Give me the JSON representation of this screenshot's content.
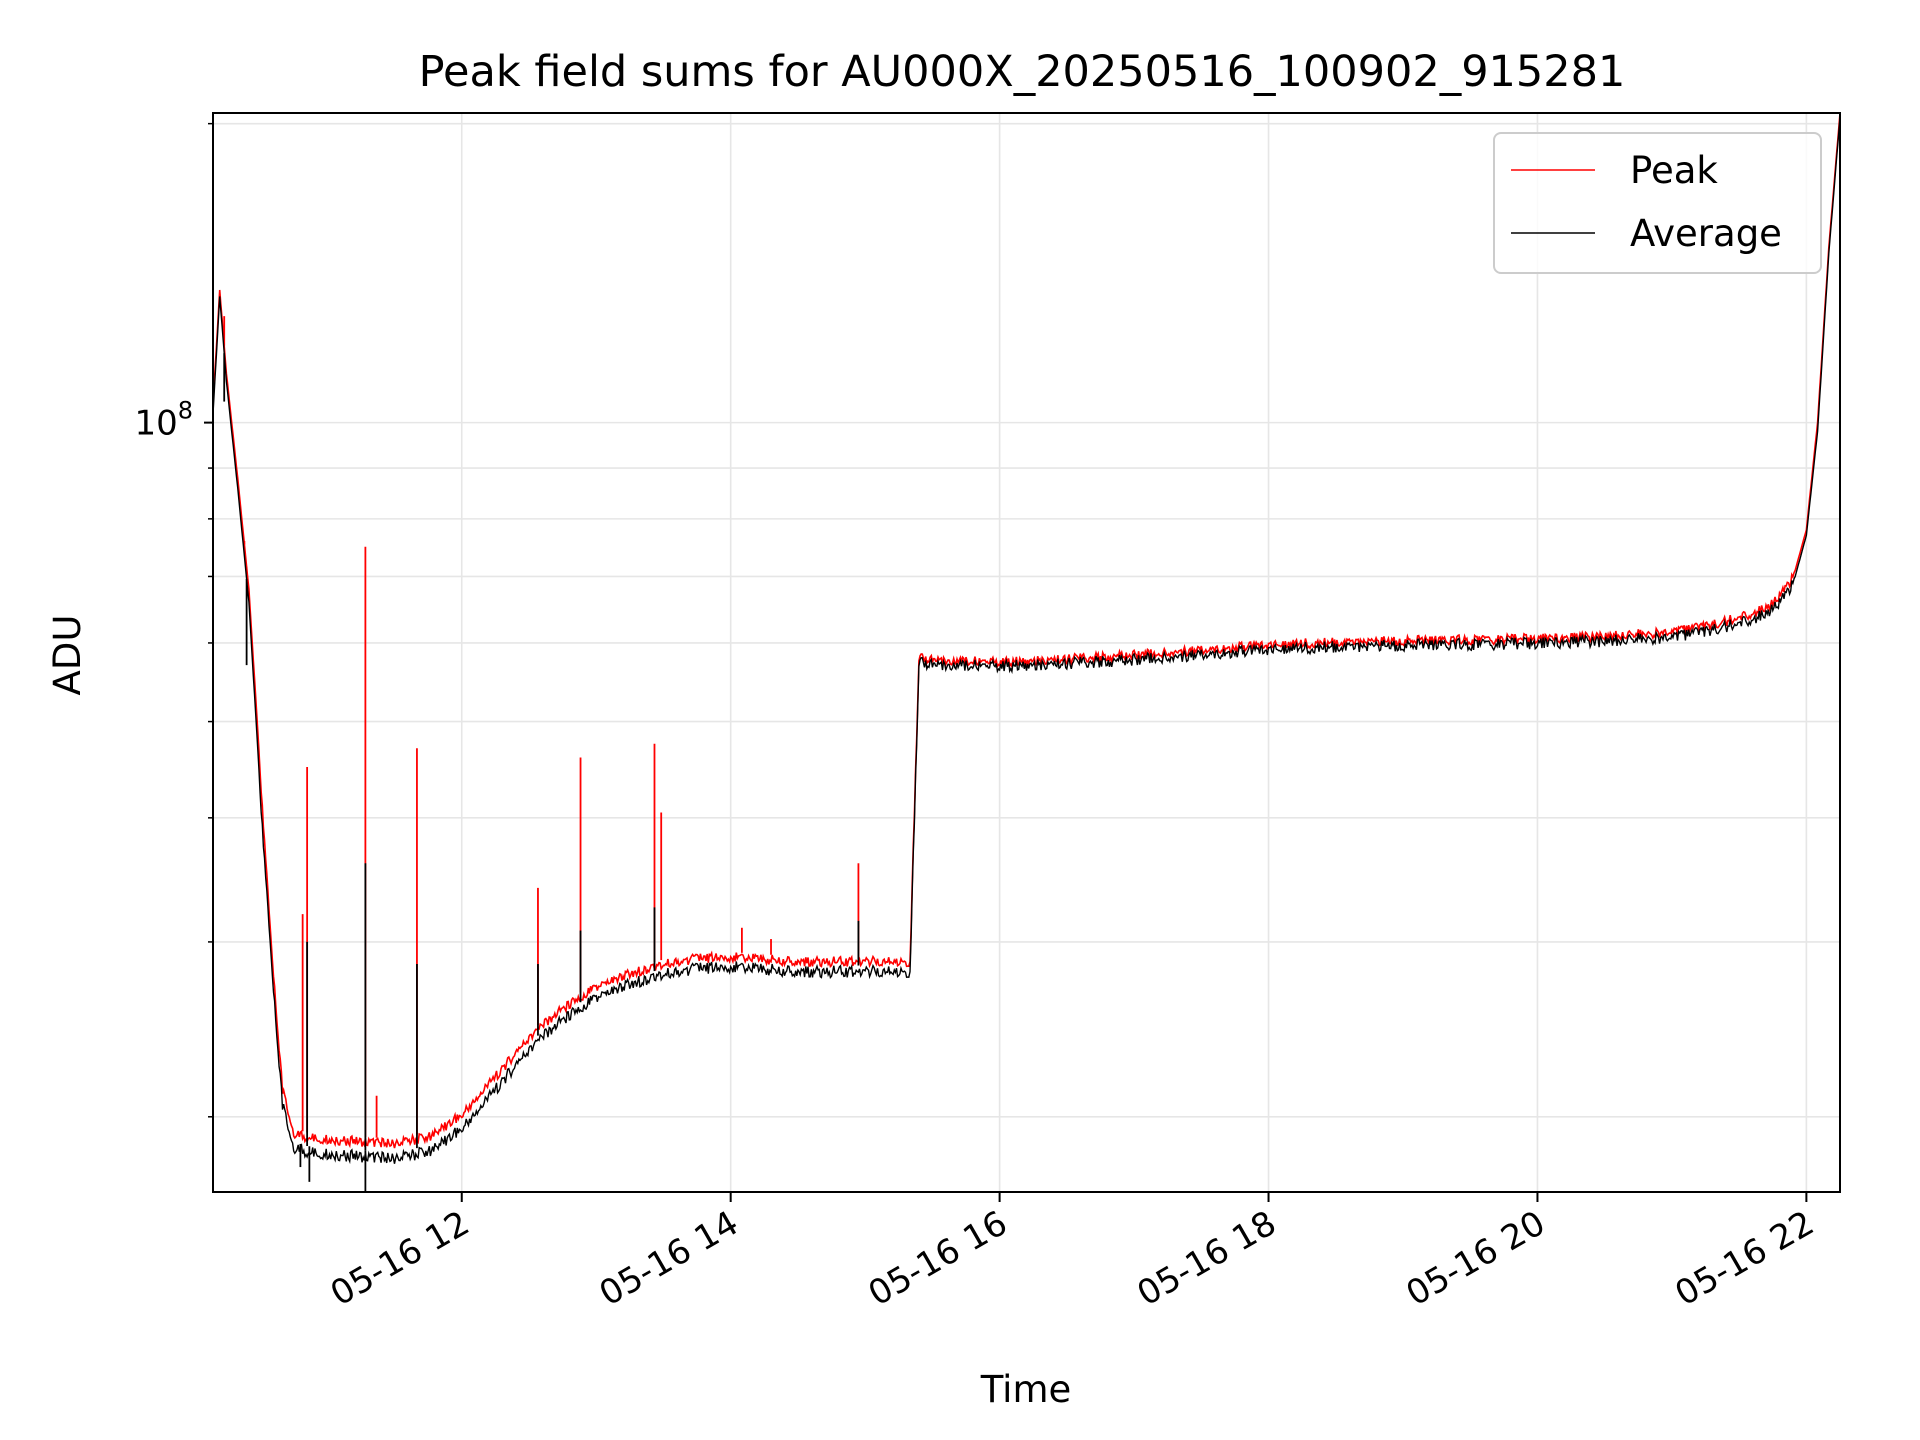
{
  "chart_data": {
    "type": "line",
    "title": "Peak field sums for AU000X_20250516_100902_915281",
    "xlabel": "Time",
    "ylabel": "ADU",
    "x_ticks": [
      "05-16 12",
      "05-16 14",
      "05-16 16",
      "05-16 18",
      "05-16 20",
      "05-16 22"
    ],
    "y_ticks": [
      {
        "value": 100000000,
        "base": "10",
        "exponent": "8"
      }
    ],
    "y_scale": "log",
    "xlim": [
      "2025-05-16 10:09",
      "2025-05-16 22:15"
    ],
    "ylim": [
      16800000,
      205000000
    ],
    "grid": true,
    "legend": {
      "position": "top-right",
      "entries": [
        "Peak",
        "Average"
      ]
    },
    "colors": {
      "Peak": "#ff0000",
      "Average": "#000000",
      "grid": "#e6e6e6"
    },
    "series": [
      {
        "name": "Peak",
        "x": [
          "2025-05-16 10:09",
          "2025-05-16 10:12",
          "2025-05-16 10:15",
          "2025-05-16 10:20",
          "2025-05-16 10:25",
          "2025-05-16 10:30",
          "2025-05-16 10:35",
          "2025-05-16 10:40",
          "2025-05-16 10:45",
          "2025-05-16 10:50",
          "2025-05-16 11:00",
          "2025-05-16 11:15",
          "2025-05-16 11:30",
          "2025-05-16 11:45",
          "2025-05-16 12:00",
          "2025-05-16 12:15",
          "2025-05-16 12:30",
          "2025-05-16 12:45",
          "2025-05-16 13:00",
          "2025-05-16 13:15",
          "2025-05-16 13:30",
          "2025-05-16 13:45",
          "2025-05-16 14:00",
          "2025-05-16 14:30",
          "2025-05-16 15:00",
          "2025-05-16 15:20",
          "2025-05-16 15:24",
          "2025-05-16 16:00",
          "2025-05-16 17:00",
          "2025-05-16 18:00",
          "2025-05-16 19:00",
          "2025-05-16 20:00",
          "2025-05-16 20:30",
          "2025-05-16 21:00",
          "2025-05-16 21:20",
          "2025-05-16 21:35",
          "2025-05-16 21:45",
          "2025-05-16 21:55",
          "2025-05-16 22:00",
          "2025-05-16 22:05",
          "2025-05-16 22:10",
          "2025-05-16 22:15"
        ],
        "values": [
          104000000,
          136000000,
          112000000,
          88000000,
          68000000,
          45000000,
          30000000,
          21500000,
          19500000,
          19300000,
          19200000,
          19100000,
          19000000,
          19300000,
          20300000,
          22200000,
          24300000,
          26000000,
          27300000,
          28200000,
          28800000,
          29200000,
          29300000,
          29000000,
          29000000,
          29000000,
          58500000,
          58000000,
          59000000,
          60500000,
          61000000,
          61300000,
          61600000,
          62300000,
          63500000,
          64800000,
          66500000,
          71000000,
          78000000,
          100000000,
          150000000,
          205000000
        ],
        "spikes": [
          {
            "x": "2025-05-16 10:14",
            "value": 128000000
          },
          {
            "x": "2025-05-16 10:23",
            "value": 76000000
          },
          {
            "x": "2025-05-16 10:24",
            "value": 71000000
          },
          {
            "x": "2025-05-16 10:49",
            "value": 32000000
          },
          {
            "x": "2025-05-16 10:51",
            "value": 45000000
          },
          {
            "x": "2025-05-16 11:17",
            "value": 75000000
          },
          {
            "x": "2025-05-16 11:22",
            "value": 21000000
          },
          {
            "x": "2025-05-16 11:40",
            "value": 47000000
          },
          {
            "x": "2025-05-16 12:34",
            "value": 34000000
          },
          {
            "x": "2025-05-16 12:53",
            "value": 46000000
          },
          {
            "x": "2025-05-16 13:26",
            "value": 47500000
          },
          {
            "x": "2025-05-16 13:29",
            "value": 40500000
          },
          {
            "x": "2025-05-16 14:05",
            "value": 31000000
          },
          {
            "x": "2025-05-16 14:18",
            "value": 30200000
          },
          {
            "x": "2025-05-16 14:57",
            "value": 36000000
          }
        ]
      },
      {
        "name": "Average",
        "x": [
          "2025-05-16 10:09",
          "2025-05-16 10:12",
          "2025-05-16 10:15",
          "2025-05-16 10:20",
          "2025-05-16 10:25",
          "2025-05-16 10:30",
          "2025-05-16 10:35",
          "2025-05-16 10:40",
          "2025-05-16 10:45",
          "2025-05-16 10:50",
          "2025-05-16 11:00",
          "2025-05-16 11:15",
          "2025-05-16 11:30",
          "2025-05-16 11:45",
          "2025-05-16 12:00",
          "2025-05-16 12:15",
          "2025-05-16 12:30",
          "2025-05-16 12:45",
          "2025-05-16 13:00",
          "2025-05-16 13:15",
          "2025-05-16 13:30",
          "2025-05-16 13:45",
          "2025-05-16 14:00",
          "2025-05-16 14:30",
          "2025-05-16 15:00",
          "2025-05-16 15:20",
          "2025-05-16 15:24",
          "2025-05-16 16:00",
          "2025-05-16 17:00",
          "2025-05-16 18:00",
          "2025-05-16 19:00",
          "2025-05-16 20:00",
          "2025-05-16 20:30",
          "2025-05-16 21:00",
          "2025-05-16 21:20",
          "2025-05-16 21:35",
          "2025-05-16 21:45",
          "2025-05-16 21:55",
          "2025-05-16 22:00",
          "2025-05-16 22:05",
          "2025-05-16 22:10",
          "2025-05-16 22:15"
        ],
        "values": [
          102000000,
          134000000,
          110000000,
          86000000,
          66000000,
          43000000,
          29000000,
          20800000,
          18900000,
          18700000,
          18600000,
          18500000,
          18400000,
          18700000,
          19700000,
          21600000,
          23700000,
          25400000,
          26700000,
          27600000,
          28200000,
          28600000,
          28700000,
          28400000,
          28400000,
          28400000,
          58000000,
          57600000,
          58500000,
          60000000,
          60500000,
          60800000,
          61100000,
          61700000,
          62900000,
          64100000,
          65800000,
          70000000,
          77000000,
          98000000,
          148000000,
          203000000
        ],
        "spikes": [
          {
            "x": "2025-05-16 10:14",
            "value": 105000000
          },
          {
            "x": "2025-05-16 10:24",
            "value": 57000000
          },
          {
            "x": "2025-05-16 10:51",
            "value": 30000000
          },
          {
            "x": "2025-05-16 11:17",
            "value": 36000000
          },
          {
            "x": "2025-05-16 11:40",
            "value": 28500000
          },
          {
            "x": "2025-05-16 12:34",
            "value": 28500000
          },
          {
            "x": "2025-05-16 12:53",
            "value": 30800000
          },
          {
            "x": "2025-05-16 13:26",
            "value": 32500000
          },
          {
            "x": "2025-05-16 14:57",
            "value": 31500000
          }
        ],
        "dips": [
          {
            "x": "2025-05-16 10:48",
            "value": 17800000
          },
          {
            "x": "2025-05-16 10:52",
            "value": 17200000
          },
          {
            "x": "2025-05-16 11:17",
            "value": 16800000
          }
        ]
      }
    ]
  }
}
